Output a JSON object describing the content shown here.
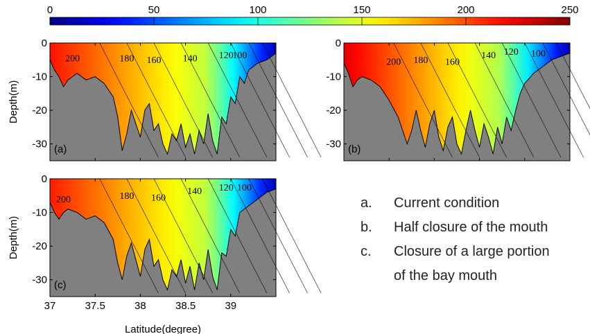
{
  "chart_data": {
    "type": "contour",
    "colorbar": {
      "ticks": [
        "0",
        "50",
        "100",
        "150",
        "200",
        "250"
      ],
      "range": [
        0,
        250
      ],
      "colormap": "jet"
    },
    "x_axis": {
      "label": "Latitude(degree)",
      "ticks": [
        "37",
        "37.5",
        "38",
        "38.5",
        "39"
      ],
      "range": [
        37,
        39.5
      ]
    },
    "y_axis": {
      "label": "Depth(m)",
      "ticks": [
        "0",
        "-10",
        "-20",
        "-30"
      ],
      "range": [
        -35,
        0
      ]
    },
    "land_color": "#808080",
    "panels": [
      {
        "tag": "(a)",
        "bottom": [
          [
            37,
            -5
          ],
          [
            37.05,
            -8
          ],
          [
            37.1,
            -10
          ],
          [
            37.15,
            -13
          ],
          [
            37.2,
            -11
          ],
          [
            37.3,
            -9
          ],
          [
            37.4,
            -11
          ],
          [
            37.5,
            -10
          ],
          [
            37.6,
            -12
          ],
          [
            37.7,
            -16
          ],
          [
            37.75,
            -22
          ],
          [
            37.8,
            -32
          ],
          [
            37.85,
            -27
          ],
          [
            37.9,
            -20
          ],
          [
            37.95,
            -24
          ],
          [
            38,
            -28
          ],
          [
            38.05,
            -20
          ],
          [
            38.1,
            -18
          ],
          [
            38.15,
            -26
          ],
          [
            38.2,
            -24
          ],
          [
            38.25,
            -30
          ],
          [
            38.3,
            -33
          ],
          [
            38.35,
            -27
          ],
          [
            38.4,
            -29
          ],
          [
            38.45,
            -24
          ],
          [
            38.5,
            -31
          ],
          [
            38.55,
            -27
          ],
          [
            38.6,
            -33
          ],
          [
            38.65,
            -26
          ],
          [
            38.7,
            -30
          ],
          [
            38.75,
            -21
          ],
          [
            38.8,
            -29
          ],
          [
            38.85,
            -33
          ],
          [
            38.9,
            -22
          ],
          [
            38.95,
            -24
          ],
          [
            39,
            -16
          ],
          [
            39.05,
            -18
          ],
          [
            39.1,
            -10
          ],
          [
            39.15,
            -12
          ],
          [
            39.2,
            -8
          ],
          [
            39.3,
            -6
          ],
          [
            39.4,
            -5
          ],
          [
            39.5,
            -3
          ]
        ],
        "labels": [
          {
            "x": 37.25,
            "y": -5.5,
            "text": "200"
          },
          {
            "x": 37.85,
            "y": -5.5,
            "text": "180"
          },
          {
            "x": 38.15,
            "y": -6,
            "text": "160"
          },
          {
            "x": 38.55,
            "y": -5.5,
            "text": "140"
          },
          {
            "x": 38.95,
            "y": -4.5,
            "text": "120"
          },
          {
            "x": 39.1,
            "y": -4.5,
            "text": "100"
          }
        ],
        "value_a": 215,
        "value_b": 140
      },
      {
        "tag": "(b)",
        "bottom": [
          [
            37,
            -6
          ],
          [
            37.05,
            -9
          ],
          [
            37.1,
            -13
          ],
          [
            37.15,
            -11
          ],
          [
            37.2,
            -10
          ],
          [
            37.3,
            -11
          ],
          [
            37.4,
            -13
          ],
          [
            37.5,
            -17
          ],
          [
            37.6,
            -22
          ],
          [
            37.7,
            -30
          ],
          [
            37.75,
            -26
          ],
          [
            37.8,
            -20
          ],
          [
            37.85,
            -26
          ],
          [
            37.9,
            -31
          ],
          [
            37.95,
            -24
          ],
          [
            38,
            -20
          ],
          [
            38.05,
            -28
          ],
          [
            38.1,
            -32
          ],
          [
            38.15,
            -25
          ],
          [
            38.2,
            -22
          ],
          [
            38.25,
            -30
          ],
          [
            38.3,
            -33
          ],
          [
            38.35,
            -26
          ],
          [
            38.4,
            -20
          ],
          [
            38.45,
            -26
          ],
          [
            38.5,
            -31
          ],
          [
            38.55,
            -24
          ],
          [
            38.6,
            -28
          ],
          [
            38.65,
            -33
          ],
          [
            38.7,
            -25
          ],
          [
            38.75,
            -30
          ],
          [
            38.8,
            -22
          ],
          [
            38.85,
            -26
          ],
          [
            38.9,
            -20
          ],
          [
            38.95,
            -15
          ],
          [
            39,
            -12
          ],
          [
            39.1,
            -9
          ],
          [
            39.2,
            -7
          ],
          [
            39.3,
            -5
          ],
          [
            39.4,
            -4
          ],
          [
            39.5,
            -3
          ]
        ],
        "labels": [
          {
            "x": 37.55,
            "y": -6.5,
            "text": "200"
          },
          {
            "x": 37.85,
            "y": -6,
            "text": "180"
          },
          {
            "x": 38.2,
            "y": -6.5,
            "text": "160"
          },
          {
            "x": 38.6,
            "y": -4.5,
            "text": "140"
          },
          {
            "x": 38.85,
            "y": -3.5,
            "text": "120"
          },
          {
            "x": 39.15,
            "y": -4,
            "text": "100"
          }
        ],
        "value_a": 225,
        "value_b": 135
      },
      {
        "tag": "(c)",
        "bottom": [
          [
            37,
            -7
          ],
          [
            37.05,
            -10
          ],
          [
            37.1,
            -12
          ],
          [
            37.15,
            -10
          ],
          [
            37.2,
            -9
          ],
          [
            37.3,
            -10
          ],
          [
            37.4,
            -12
          ],
          [
            37.5,
            -11
          ],
          [
            37.6,
            -13
          ],
          [
            37.7,
            -18
          ],
          [
            37.75,
            -25
          ],
          [
            37.8,
            -30
          ],
          [
            37.85,
            -23
          ],
          [
            37.9,
            -19
          ],
          [
            37.95,
            -24
          ],
          [
            38,
            -29
          ],
          [
            38.05,
            -21
          ],
          [
            38.1,
            -18
          ],
          [
            38.15,
            -26
          ],
          [
            38.2,
            -24
          ],
          [
            38.25,
            -30
          ],
          [
            38.3,
            -33
          ],
          [
            38.35,
            -27
          ],
          [
            38.4,
            -29
          ],
          [
            38.45,
            -24
          ],
          [
            38.5,
            -31
          ],
          [
            38.55,
            -26
          ],
          [
            38.6,
            -33
          ],
          [
            38.65,
            -25
          ],
          [
            38.7,
            -30
          ],
          [
            38.75,
            -21
          ],
          [
            38.8,
            -29
          ],
          [
            38.85,
            -33
          ],
          [
            38.9,
            -22
          ],
          [
            38.95,
            -23
          ],
          [
            39,
            -15
          ],
          [
            39.05,
            -17
          ],
          [
            39.1,
            -10
          ],
          [
            39.2,
            -8
          ],
          [
            39.3,
            -6
          ],
          [
            39.4,
            -4
          ],
          [
            39.5,
            -3
          ]
        ],
        "labels": [
          {
            "x": 37.15,
            "y": -7,
            "text": "200"
          },
          {
            "x": 37.85,
            "y": -6,
            "text": "180"
          },
          {
            "x": 38.2,
            "y": -6.5,
            "text": "160"
          },
          {
            "x": 38.6,
            "y": -4.5,
            "text": "140"
          },
          {
            "x": 38.95,
            "y": -3.5,
            "text": "120"
          },
          {
            "x": 39.15,
            "y": -3.5,
            "text": "100"
          }
        ],
        "value_a": 212,
        "value_b": 140
      }
    ]
  },
  "annotations": [
    {
      "letter": "a.",
      "text": "Current condition"
    },
    {
      "letter": "b.",
      "text": "Half closure of the mouth"
    },
    {
      "letter": "c.",
      "text": "Closure of a large portion"
    },
    {
      "letter": "",
      "text": "of the bay mouth"
    }
  ]
}
